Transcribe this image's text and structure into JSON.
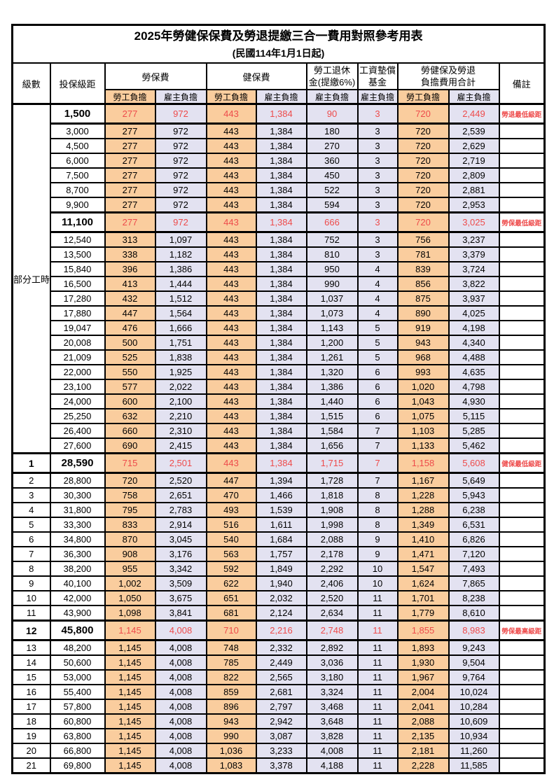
{
  "title": "2025年勞健保保費及勞退提繳三合一費用對照參考用表",
  "subtitle": "(民國114年1月1日起)",
  "header": {
    "level": "級數",
    "bracket": "投保級距",
    "labor_fee": "勞保費",
    "health_fee": "健保費",
    "pension_l1": "勞工退休",
    "pension_l2": "金(提繳6%)",
    "wage_fund_l1": "工資墊償",
    "wage_fund_l2": "基金",
    "total_l1": "勞健保及勞退",
    "total_l2": "負擔費用合計",
    "remark": "備註",
    "employee_share": "勞工負擔",
    "employer_share": "雇主負擔"
  },
  "part_time_label": "部分工時",
  "colors": {
    "employee_bg": "#FACD9E",
    "employer_bg": "#E3E2F1",
    "highlight_red": "#EE4B4B",
    "border": "#000000"
  },
  "rows": [
    {
      "level": "",
      "bracket": "1,500",
      "values": [
        "277",
        "972",
        "443",
        "1,384",
        "90",
        "3",
        "720",
        "2,449"
      ],
      "remark": "勞退最低級距",
      "highlight": true
    },
    {
      "level": "",
      "bracket": "3,000",
      "values": [
        "277",
        "972",
        "443",
        "1,384",
        "180",
        "3",
        "720",
        "2,539"
      ],
      "remark": "",
      "highlight": false
    },
    {
      "level": "",
      "bracket": "4,500",
      "values": [
        "277",
        "972",
        "443",
        "1,384",
        "270",
        "3",
        "720",
        "2,629"
      ],
      "remark": "",
      "highlight": false
    },
    {
      "level": "",
      "bracket": "6,000",
      "values": [
        "277",
        "972",
        "443",
        "1,384",
        "360",
        "3",
        "720",
        "2,719"
      ],
      "remark": "",
      "highlight": false
    },
    {
      "level": "",
      "bracket": "7,500",
      "values": [
        "277",
        "972",
        "443",
        "1,384",
        "450",
        "3",
        "720",
        "2,809"
      ],
      "remark": "",
      "highlight": false
    },
    {
      "level": "",
      "bracket": "8,700",
      "values": [
        "277",
        "972",
        "443",
        "1,384",
        "522",
        "3",
        "720",
        "2,881"
      ],
      "remark": "",
      "highlight": false
    },
    {
      "level": "",
      "bracket": "9,900",
      "values": [
        "277",
        "972",
        "443",
        "1,384",
        "594",
        "3",
        "720",
        "2,953"
      ],
      "remark": "",
      "highlight": false
    },
    {
      "level": "",
      "bracket": "11,100",
      "values": [
        "277",
        "972",
        "443",
        "1,384",
        "666",
        "3",
        "720",
        "3,025"
      ],
      "remark": "勞保最低級距",
      "highlight": true
    },
    {
      "level": "",
      "bracket": "12,540",
      "values": [
        "313",
        "1,097",
        "443",
        "1,384",
        "752",
        "3",
        "756",
        "3,237"
      ],
      "remark": "",
      "highlight": false
    },
    {
      "level": "",
      "bracket": "13,500",
      "values": [
        "338",
        "1,182",
        "443",
        "1,384",
        "810",
        "3",
        "781",
        "3,379"
      ],
      "remark": "",
      "highlight": false
    },
    {
      "level": "",
      "bracket": "15,840",
      "values": [
        "396",
        "1,386",
        "443",
        "1,384",
        "950",
        "4",
        "839",
        "3,724"
      ],
      "remark": "",
      "highlight": false
    },
    {
      "level": "",
      "bracket": "16,500",
      "values": [
        "413",
        "1,444",
        "443",
        "1,384",
        "990",
        "4",
        "856",
        "3,822"
      ],
      "remark": "",
      "highlight": false
    },
    {
      "level": "",
      "bracket": "17,280",
      "values": [
        "432",
        "1,512",
        "443",
        "1,384",
        "1,037",
        "4",
        "875",
        "3,937"
      ],
      "remark": "",
      "highlight": false
    },
    {
      "level": "",
      "bracket": "17,880",
      "values": [
        "447",
        "1,564",
        "443",
        "1,384",
        "1,073",
        "4",
        "890",
        "4,025"
      ],
      "remark": "",
      "highlight": false
    },
    {
      "level": "",
      "bracket": "19,047",
      "values": [
        "476",
        "1,666",
        "443",
        "1,384",
        "1,143",
        "5",
        "919",
        "4,198"
      ],
      "remark": "",
      "highlight": false
    },
    {
      "level": "",
      "bracket": "20,008",
      "values": [
        "500",
        "1,751",
        "443",
        "1,384",
        "1,200",
        "5",
        "943",
        "4,340"
      ],
      "remark": "",
      "highlight": false
    },
    {
      "level": "",
      "bracket": "21,009",
      "values": [
        "525",
        "1,838",
        "443",
        "1,384",
        "1,261",
        "5",
        "968",
        "4,488"
      ],
      "remark": "",
      "highlight": false
    },
    {
      "level": "",
      "bracket": "22,000",
      "values": [
        "550",
        "1,925",
        "443",
        "1,384",
        "1,320",
        "6",
        "993",
        "4,635"
      ],
      "remark": "",
      "highlight": false
    },
    {
      "level": "",
      "bracket": "23,100",
      "values": [
        "577",
        "2,022",
        "443",
        "1,384",
        "1,386",
        "6",
        "1,020",
        "4,798"
      ],
      "remark": "",
      "highlight": false
    },
    {
      "level": "",
      "bracket": "24,000",
      "values": [
        "600",
        "2,100",
        "443",
        "1,384",
        "1,440",
        "6",
        "1,043",
        "4,930"
      ],
      "remark": "",
      "highlight": false
    },
    {
      "level": "",
      "bracket": "25,250",
      "values": [
        "632",
        "2,210",
        "443",
        "1,384",
        "1,515",
        "6",
        "1,075",
        "5,115"
      ],
      "remark": "",
      "highlight": false
    },
    {
      "level": "",
      "bracket": "26,400",
      "values": [
        "660",
        "2,310",
        "443",
        "1,384",
        "1,584",
        "7",
        "1,103",
        "5,285"
      ],
      "remark": "",
      "highlight": false
    },
    {
      "level": "",
      "bracket": "27,600",
      "values": [
        "690",
        "2,415",
        "443",
        "1,384",
        "1,656",
        "7",
        "1,133",
        "5,462"
      ],
      "remark": "",
      "highlight": false
    },
    {
      "level": "1",
      "bracket": "28,590",
      "values": [
        "715",
        "2,501",
        "443",
        "1,384",
        "1,715",
        "7",
        "1,158",
        "5,608"
      ],
      "remark": "健保最低級距",
      "highlight": true
    },
    {
      "level": "2",
      "bracket": "28,800",
      "values": [
        "720",
        "2,520",
        "447",
        "1,394",
        "1,728",
        "7",
        "1,167",
        "5,649"
      ],
      "remark": "",
      "highlight": false
    },
    {
      "level": "3",
      "bracket": "30,300",
      "values": [
        "758",
        "2,651",
        "470",
        "1,466",
        "1,818",
        "8",
        "1,228",
        "5,943"
      ],
      "remark": "",
      "highlight": false
    },
    {
      "level": "4",
      "bracket": "31,800",
      "values": [
        "795",
        "2,783",
        "493",
        "1,539",
        "1,908",
        "8",
        "1,288",
        "6,238"
      ],
      "remark": "",
      "highlight": false
    },
    {
      "level": "5",
      "bracket": "33,300",
      "values": [
        "833",
        "2,914",
        "516",
        "1,611",
        "1,998",
        "8",
        "1,349",
        "6,531"
      ],
      "remark": "",
      "highlight": false
    },
    {
      "level": "6",
      "bracket": "34,800",
      "values": [
        "870",
        "3,045",
        "540",
        "1,684",
        "2,088",
        "9",
        "1,410",
        "6,826"
      ],
      "remark": "",
      "highlight": false
    },
    {
      "level": "7",
      "bracket": "36,300",
      "values": [
        "908",
        "3,176",
        "563",
        "1,757",
        "2,178",
        "9",
        "1,471",
        "7,120"
      ],
      "remark": "",
      "highlight": false
    },
    {
      "level": "8",
      "bracket": "38,200",
      "values": [
        "955",
        "3,342",
        "592",
        "1,849",
        "2,292",
        "10",
        "1,547",
        "7,493"
      ],
      "remark": "",
      "highlight": false
    },
    {
      "level": "9",
      "bracket": "40,100",
      "values": [
        "1,002",
        "3,509",
        "622",
        "1,940",
        "2,406",
        "10",
        "1,624",
        "7,865"
      ],
      "remark": "",
      "highlight": false
    },
    {
      "level": "10",
      "bracket": "42,000",
      "values": [
        "1,050",
        "3,675",
        "651",
        "2,032",
        "2,520",
        "11",
        "1,701",
        "8,238"
      ],
      "remark": "",
      "highlight": false
    },
    {
      "level": "11",
      "bracket": "43,900",
      "values": [
        "1,098",
        "3,841",
        "681",
        "2,124",
        "2,634",
        "11",
        "1,779",
        "8,610"
      ],
      "remark": "",
      "highlight": false
    },
    {
      "level": "12",
      "bracket": "45,800",
      "values": [
        "1,145",
        "4,008",
        "710",
        "2,216",
        "2,748",
        "11",
        "1,855",
        "8,983"
      ],
      "remark": "勞保最高級距",
      "highlight": true
    },
    {
      "level": "13",
      "bracket": "48,200",
      "values": [
        "1,145",
        "4,008",
        "748",
        "2,332",
        "2,892",
        "11",
        "1,893",
        "9,243"
      ],
      "remark": "",
      "highlight": false
    },
    {
      "level": "14",
      "bracket": "50,600",
      "values": [
        "1,145",
        "4,008",
        "785",
        "2,449",
        "3,036",
        "11",
        "1,930",
        "9,504"
      ],
      "remark": "",
      "highlight": false
    },
    {
      "level": "15",
      "bracket": "53,000",
      "values": [
        "1,145",
        "4,008",
        "822",
        "2,565",
        "3,180",
        "11",
        "1,967",
        "9,764"
      ],
      "remark": "",
      "highlight": false
    },
    {
      "level": "16",
      "bracket": "55,400",
      "values": [
        "1,145",
        "4,008",
        "859",
        "2,681",
        "3,324",
        "11",
        "2,004",
        "10,024"
      ],
      "remark": "",
      "highlight": false
    },
    {
      "level": "17",
      "bracket": "57,800",
      "values": [
        "1,145",
        "4,008",
        "896",
        "2,797",
        "3,468",
        "11",
        "2,041",
        "10,284"
      ],
      "remark": "",
      "highlight": false
    },
    {
      "level": "18",
      "bracket": "60,800",
      "values": [
        "1,145",
        "4,008",
        "943",
        "2,942",
        "3,648",
        "11",
        "2,088",
        "10,609"
      ],
      "remark": "",
      "highlight": false
    },
    {
      "level": "19",
      "bracket": "63,800",
      "values": [
        "1,145",
        "4,008",
        "990",
        "3,087",
        "3,828",
        "11",
        "2,135",
        "10,934"
      ],
      "remark": "",
      "highlight": false
    },
    {
      "level": "20",
      "bracket": "66,800",
      "values": [
        "1,145",
        "4,008",
        "1,036",
        "3,233",
        "4,008",
        "11",
        "2,181",
        "11,260"
      ],
      "remark": "",
      "highlight": false
    },
    {
      "level": "21",
      "bracket": "69,800",
      "values": [
        "1,145",
        "4,008",
        "1,083",
        "3,378",
        "4,188",
        "11",
        "2,228",
        "11,585"
      ],
      "remark": "",
      "highlight": false
    }
  ]
}
